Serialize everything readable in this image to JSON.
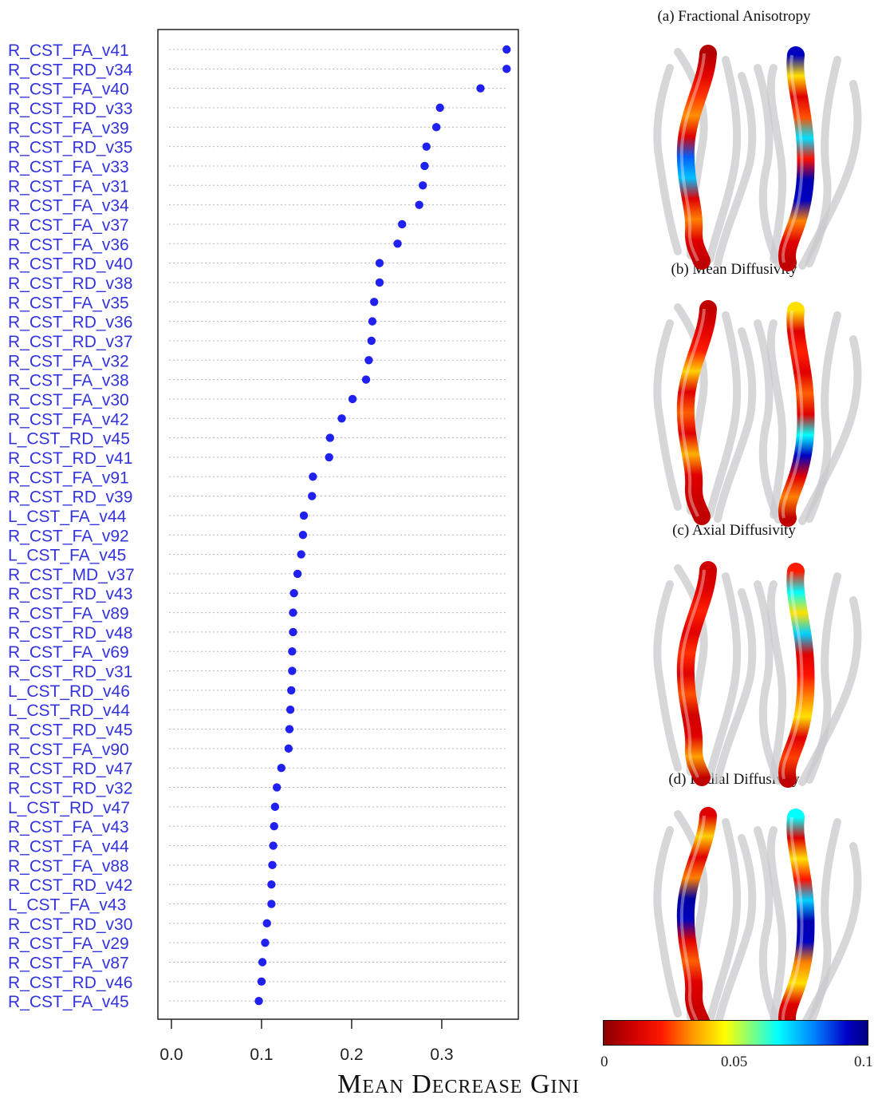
{
  "chart_data": {
    "type": "scatter",
    "xlabel": "Mean Decrease Gini",
    "xlim": [
      -0.015,
      0.385
    ],
    "xticks": [
      0.0,
      0.1,
      0.2,
      0.3
    ],
    "xtick_labels": [
      "0.0",
      "0.1",
      "0.2",
      "0.3"
    ],
    "grid": "dotted horizontal guide per row",
    "categories": [
      "R_CST_FA_v41",
      "R_CST_RD_v34",
      "R_CST_FA_v40",
      "R_CST_RD_v33",
      "R_CST_FA_v39",
      "R_CST_RD_v35",
      "R_CST_FA_v33",
      "R_CST_FA_v31",
      "R_CST_FA_v34",
      "R_CST_FA_v37",
      "R_CST_FA_v36",
      "R_CST_RD_v40",
      "R_CST_RD_v38",
      "R_CST_FA_v35",
      "R_CST_RD_v36",
      "R_CST_RD_v37",
      "R_CST_FA_v32",
      "R_CST_FA_v38",
      "R_CST_FA_v30",
      "R_CST_FA_v42",
      "L_CST_RD_v45",
      "R_CST_RD_v41",
      "R_CST_FA_v91",
      "R_CST_RD_v39",
      "L_CST_FA_v44",
      "R_CST_FA_v92",
      "L_CST_FA_v45",
      "R_CST_MD_v37",
      "R_CST_RD_v43",
      "R_CST_FA_v89",
      "R_CST_RD_v48",
      "R_CST_FA_v69",
      "R_CST_RD_v31",
      "L_CST_RD_v46",
      "L_CST_RD_v44",
      "R_CST_RD_v45",
      "R_CST_FA_v90",
      "R_CST_RD_v47",
      "R_CST_RD_v32",
      "L_CST_RD_v47",
      "R_CST_FA_v43",
      "R_CST_FA_v44",
      "R_CST_FA_v88",
      "R_CST_RD_v42",
      "L_CST_FA_v43",
      "R_CST_RD_v30",
      "R_CST_FA_v29",
      "R_CST_FA_v87",
      "R_CST_RD_v46",
      "R_CST_FA_v45"
    ],
    "values": [
      0.372,
      0.372,
      0.343,
      0.298,
      0.294,
      0.283,
      0.281,
      0.279,
      0.275,
      0.256,
      0.251,
      0.231,
      0.231,
      0.225,
      0.223,
      0.222,
      0.219,
      0.216,
      0.201,
      0.189,
      0.176,
      0.175,
      0.157,
      0.156,
      0.147,
      0.146,
      0.144,
      0.14,
      0.136,
      0.135,
      0.135,
      0.134,
      0.134,
      0.133,
      0.132,
      0.131,
      0.13,
      0.122,
      0.117,
      0.115,
      0.114,
      0.113,
      0.112,
      0.111,
      0.111,
      0.106,
      0.104,
      0.101,
      0.1,
      0.097
    ],
    "point_color": "#2020f0",
    "label_color": "#3333dd"
  },
  "panels": [
    {
      "title": "(a) Fractional Anisotropy",
      "colors": [
        "#b30000",
        "#e00000",
        "#ff3000",
        "#ff9000",
        "#e00000",
        "#0060ff",
        "#00c0ff",
        "#e00000",
        "#ff8000",
        "#e00000",
        "#c00000"
      ],
      "colors_right": [
        "#0000c0",
        "#ffe000",
        "#e00000",
        "#ff5000",
        "#00e0ff",
        "#ff1000",
        "#0000b0",
        "#0000c0",
        "#ff8000",
        "#e00000",
        "#c00000"
      ]
    },
    {
      "title": "(b) Mean Diffusivity",
      "colors": [
        "#c00000",
        "#e00000",
        "#ff1a00",
        "#ffd000",
        "#e00000",
        "#ff6000",
        "#e00000",
        "#ffb000",
        "#e00000",
        "#d00000",
        "#c00000"
      ],
      "colors_right": [
        "#ffe000",
        "#e00000",
        "#ff2000",
        "#e00000",
        "#ff6000",
        "#e00000",
        "#00ffff",
        "#0000c0",
        "#e00000",
        "#ff8000",
        "#c00000"
      ]
    },
    {
      "title": "(c) Axial Diffusivity",
      "colors": [
        "#d00000",
        "#e00000",
        "#ff2000",
        "#e00000",
        "#ff3000",
        "#e00000",
        "#ff5000",
        "#d00000",
        "#e00000",
        "#ffa000",
        "#c00000"
      ],
      "colors_right": [
        "#ff1a00",
        "#00ffff",
        "#ffe000",
        "#00d0ff",
        "#e00000",
        "#ff1000",
        "#ff8000",
        "#ffe000",
        "#e00000",
        "#ff4000",
        "#c00000"
      ]
    },
    {
      "title": "(d) Radial Diffusivity",
      "colors": [
        "#e00000",
        "#ffd000",
        "#e00000",
        "#ff8000",
        "#0000a0",
        "#0000c0",
        "#e00000",
        "#ff6000",
        "#e00000",
        "#d00000",
        "#c00000"
      ],
      "colors_right": [
        "#00ffff",
        "#e00000",
        "#ffe000",
        "#ff1000",
        "#00d0ff",
        "#0000b0",
        "#0000c0",
        "#ff8000",
        "#ffe000",
        "#e00000",
        "#c00000"
      ]
    }
  ],
  "colorbar": {
    "ticks": [
      "0",
      "0.05",
      "0.1"
    ]
  }
}
